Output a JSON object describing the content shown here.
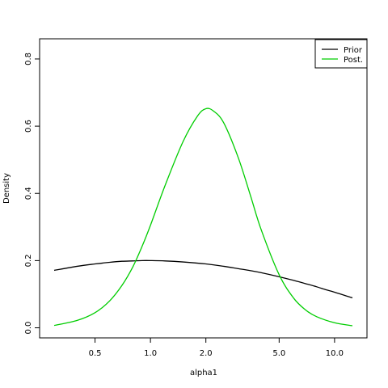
{
  "chart_data": {
    "type": "line",
    "xscale": "log",
    "xlabel": "alpha1",
    "ylabel": "Density",
    "xlim": [
      0.25,
      15
    ],
    "ylim": [
      -0.03,
      0.86
    ],
    "x_ticks": [
      0.5,
      1.0,
      2.0,
      5.0,
      10.0
    ],
    "x_tick_labels": [
      "0.5",
      "1.0",
      "2.0",
      "5.0",
      "10.0"
    ],
    "y_ticks": [
      0.0,
      0.2,
      0.4,
      0.6,
      0.8
    ],
    "y_tick_labels": [
      "0.0",
      "0.2",
      "0.4",
      "0.6",
      "0.8"
    ],
    "legend_position": "top-right",
    "series": [
      {
        "name": "Prior",
        "color": "#000000",
        "x": [
          0.3,
          0.4,
          0.5,
          0.6,
          0.7,
          0.8,
          0.9,
          1.0,
          1.2,
          1.5,
          2.0,
          2.5,
          3.0,
          3.5,
          4.0,
          5.0,
          6.0,
          7.0,
          8.0,
          9.0,
          10.0,
          12.5
        ],
        "y": [
          0.171,
          0.183,
          0.19,
          0.195,
          0.198,
          0.199,
          0.2,
          0.2,
          0.199,
          0.196,
          0.19,
          0.183,
          0.176,
          0.17,
          0.164,
          0.152,
          0.141,
          0.131,
          0.122,
          0.113,
          0.106,
          0.089
        ]
      },
      {
        "name": "Post.",
        "color": "#00cd00",
        "x": [
          0.3,
          0.4,
          0.5,
          0.6,
          0.7,
          0.8,
          0.9,
          1.0,
          1.2,
          1.5,
          1.8,
          2.0,
          2.2,
          2.5,
          3.0,
          3.5,
          4.0,
          5.0,
          6.0,
          7.0,
          8.0,
          10.0,
          12.5
        ],
        "y": [
          0.007,
          0.022,
          0.045,
          0.08,
          0.126,
          0.18,
          0.242,
          0.305,
          0.423,
          0.553,
          0.63,
          0.652,
          0.645,
          0.61,
          0.506,
          0.392,
          0.291,
          0.158,
          0.088,
          0.052,
          0.033,
          0.015,
          0.006
        ]
      }
    ]
  }
}
